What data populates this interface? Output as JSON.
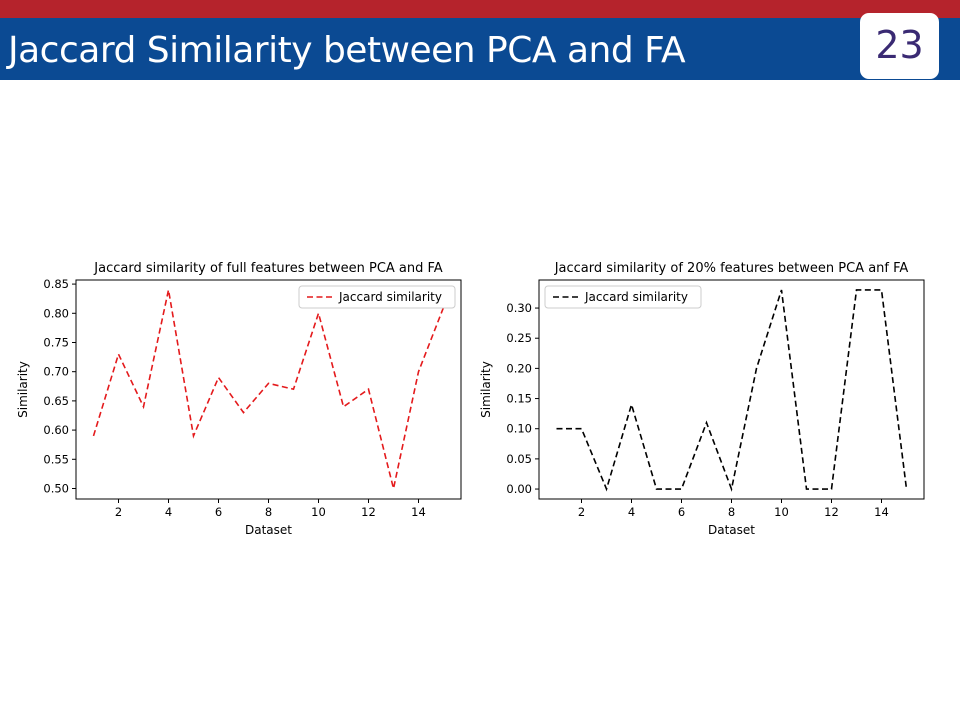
{
  "slide": {
    "title": "Jaccard Similarity between PCA and FA",
    "page_number": "23"
  },
  "colors": {
    "top_bar": "#b5232c",
    "title_band": "#0b4a93",
    "series_left": "#e41a1c",
    "series_right": "#000000"
  },
  "chart_data": [
    {
      "type": "line",
      "title": "Jaccard similarity of full features between PCA and FA",
      "xlabel": "Dataset",
      "ylabel": "Similarity",
      "x": [
        1,
        2,
        3,
        4,
        5,
        6,
        7,
        8,
        9,
        10,
        11,
        12,
        13,
        14,
        15
      ],
      "series": [
        {
          "name": "Jaccard similarity",
          "values": [
            0.59,
            0.73,
            0.64,
            0.84,
            0.59,
            0.69,
            0.63,
            0.68,
            0.67,
            0.8,
            0.64,
            0.67,
            0.5,
            0.7,
            0.81
          ],
          "color": "#e41a1c",
          "style": "dashed"
        }
      ],
      "xlim": [
        0.3,
        15.7
      ],
      "ylim": [
        0.482,
        0.857
      ],
      "xticks": [
        "2",
        "4",
        "6",
        "8",
        "10",
        "12",
        "14"
      ],
      "yticks": [
        "0.50",
        "0.55",
        "0.60",
        "0.65",
        "0.70",
        "0.75",
        "0.80",
        "0.85"
      ],
      "legend": "top-right",
      "grid": false
    },
    {
      "type": "line",
      "title": "Jaccard similarity of 20% features between PCA anf FA",
      "xlabel": "Dataset",
      "ylabel": "Similarity",
      "x": [
        1,
        2,
        3,
        4,
        5,
        6,
        7,
        8,
        9,
        10,
        11,
        12,
        13,
        14,
        15
      ],
      "series": [
        {
          "name": "Jaccard similarity",
          "values": [
            0.1,
            0.1,
            0.0,
            0.14,
            0.0,
            0.0,
            0.11,
            0.0,
            0.2,
            0.33,
            0.0,
            0.0,
            0.33,
            0.33,
            0.0
          ],
          "color": "#000000",
          "style": "dashed"
        }
      ],
      "xlim": [
        0.3,
        15.7
      ],
      "ylim": [
        -0.0165,
        0.3465
      ],
      "xticks": [
        "2",
        "4",
        "6",
        "8",
        "10",
        "12",
        "14"
      ],
      "yticks": [
        "0.00",
        "0.05",
        "0.10",
        "0.15",
        "0.20",
        "0.25",
        "0.30"
      ],
      "legend": "top-left",
      "grid": false
    }
  ]
}
